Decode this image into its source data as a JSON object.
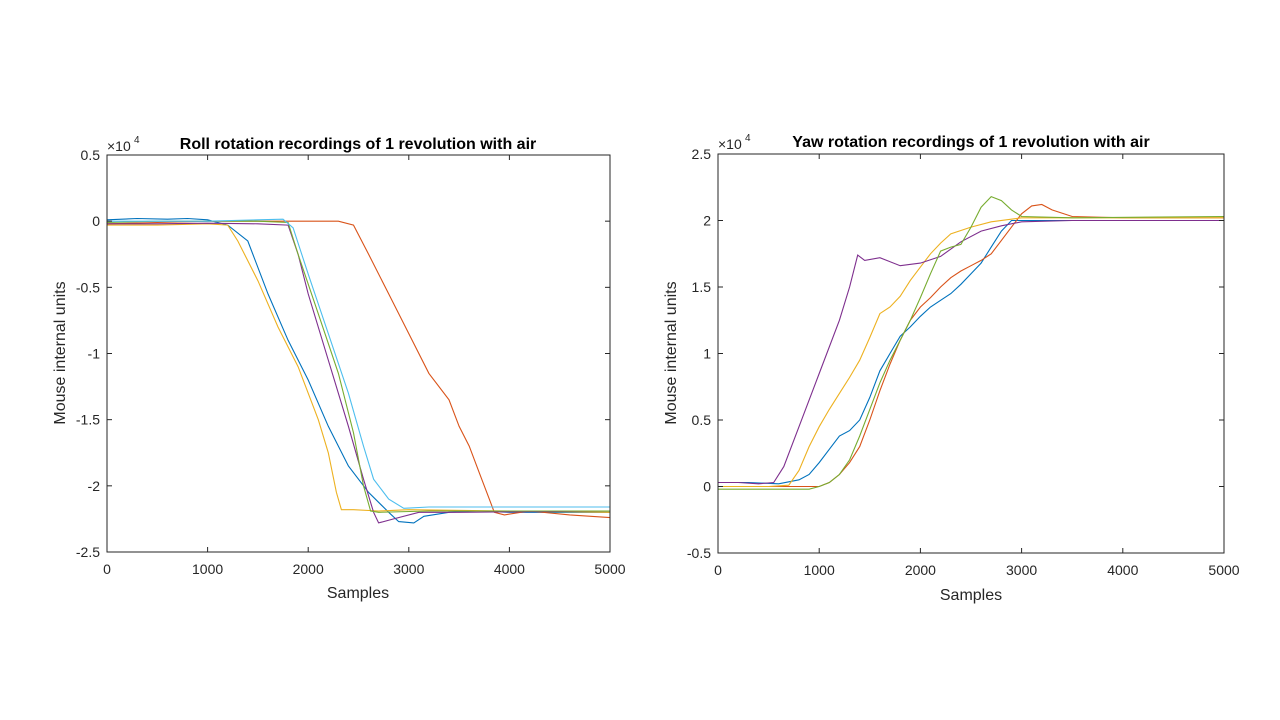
{
  "chart_data": [
    {
      "type": "line",
      "title": "Roll rotation recordings of 1 revolution with air",
      "xlabel": "Samples",
      "ylabel": "Mouse internal units",
      "xlim": [
        0,
        5000
      ],
      "ylim": [
        -25000,
        5000
      ],
      "x_ticks": [
        "0",
        "1000",
        "2000",
        "3000",
        "4000",
        "5000"
      ],
      "y_ticks": [
        "0.5",
        "0",
        "-0.5",
        "-1",
        "-1.5",
        "-2",
        "-2.5"
      ],
      "y_tick_values": [
        5000,
        0,
        -5000,
        -10000,
        -15000,
        -20000,
        -25000
      ],
      "exponent_label": "×10",
      "exponent_power": "4",
      "grid": false,
      "series": [
        {
          "color": "#0072BD",
          "points": [
            [
              0,
              100
            ],
            [
              300,
              200
            ],
            [
              600,
              150
            ],
            [
              800,
              200
            ],
            [
              1000,
              100
            ],
            [
              1200,
              -300
            ],
            [
              1400,
              -1500
            ],
            [
              1600,
              -5500
            ],
            [
              1800,
              -9000
            ],
            [
              2000,
              -12000
            ],
            [
              2200,
              -15500
            ],
            [
              2400,
              -18500
            ],
            [
              2600,
              -20500
            ],
            [
              2800,
              -22000
            ],
            [
              2900,
              -22700
            ],
            [
              3050,
              -22800
            ],
            [
              3150,
              -22300
            ],
            [
              3400,
              -22000
            ],
            [
              3700,
              -21900
            ],
            [
              4000,
              -22000
            ],
            [
              4500,
              -22000
            ],
            [
              5000,
              -22000
            ]
          ]
        },
        {
          "color": "#D95319",
          "points": [
            [
              0,
              -200
            ],
            [
              500,
              -100
            ],
            [
              1000,
              0
            ],
            [
              1500,
              0
            ],
            [
              2000,
              0
            ],
            [
              2300,
              0
            ],
            [
              2450,
              -300
            ],
            [
              2600,
              -2500
            ],
            [
              2800,
              -5500
            ],
            [
              3000,
              -8500
            ],
            [
              3200,
              -11500
            ],
            [
              3400,
              -13500
            ],
            [
              3500,
              -15500
            ],
            [
              3600,
              -17000
            ],
            [
              3700,
              -19000
            ],
            [
              3800,
              -21000
            ],
            [
              3850,
              -22000
            ],
            [
              3950,
              -22200
            ],
            [
              4200,
              -21900
            ],
            [
              4600,
              -22200
            ],
            [
              5000,
              -22400
            ]
          ]
        },
        {
          "color": "#EDB120",
          "points": [
            [
              0,
              -300
            ],
            [
              500,
              -300
            ],
            [
              1000,
              -200
            ],
            [
              1200,
              -300
            ],
            [
              1300,
              -1500
            ],
            [
              1500,
              -4500
            ],
            [
              1700,
              -8000
            ],
            [
              1900,
              -11000
            ],
            [
              2100,
              -15000
            ],
            [
              2200,
              -17500
            ],
            [
              2280,
              -20500
            ],
            [
              2330,
              -21800
            ],
            [
              2450,
              -21800
            ],
            [
              2700,
              -21900
            ],
            [
              3000,
              -21800
            ],
            [
              4000,
              -21900
            ],
            [
              5000,
              -22000
            ]
          ]
        },
        {
          "color": "#7E2F8E",
          "points": [
            [
              0,
              -200
            ],
            [
              500,
              -200
            ],
            [
              1000,
              -150
            ],
            [
              1500,
              -200
            ],
            [
              1800,
              -300
            ],
            [
              1900,
              -2500
            ],
            [
              2000,
              -5500
            ],
            [
              2200,
              -10500
            ],
            [
              2400,
              -15500
            ],
            [
              2550,
              -19500
            ],
            [
              2650,
              -22000
            ],
            [
              2700,
              -22800
            ],
            [
              2850,
              -22500
            ],
            [
              3100,
              -22000
            ],
            [
              3500,
              -22000
            ],
            [
              5000,
              -21900
            ]
          ]
        },
        {
          "color": "#77AC30",
          "points": [
            [
              0,
              -100
            ],
            [
              500,
              0
            ],
            [
              1000,
              0
            ],
            [
              1500,
              0
            ],
            [
              1800,
              -100
            ],
            [
              1900,
              -2500
            ],
            [
              2100,
              -7000
            ],
            [
              2300,
              -11500
            ],
            [
              2450,
              -16000
            ],
            [
              2550,
              -20000
            ],
            [
              2620,
              -21900
            ],
            [
              2700,
              -22000
            ],
            [
              3200,
              -21900
            ],
            [
              5000,
              -21900
            ]
          ]
        },
        {
          "color": "#4DBEEE",
          "points": [
            [
              0,
              0
            ],
            [
              500,
              0
            ],
            [
              1000,
              0
            ],
            [
              1500,
              100
            ],
            [
              1750,
              150
            ],
            [
              1850,
              -500
            ],
            [
              2000,
              -4000
            ],
            [
              2200,
              -8500
            ],
            [
              2400,
              -13000
            ],
            [
              2550,
              -17000
            ],
            [
              2650,
              -19500
            ],
            [
              2800,
              -21000
            ],
            [
              2950,
              -21700
            ],
            [
              3200,
              -21600
            ],
            [
              5000,
              -21600
            ]
          ]
        }
      ]
    },
    {
      "type": "line",
      "title": "Yaw rotation recordings of 1 revolution with air",
      "xlabel": "Samples",
      "ylabel": "Mouse internal units",
      "xlim": [
        0,
        5000
      ],
      "ylim": [
        -5000,
        25000
      ],
      "x_ticks": [
        "0",
        "1000",
        "2000",
        "3000",
        "4000",
        "5000"
      ],
      "y_ticks": [
        "2.5",
        "2",
        "1.5",
        "1",
        "0.5",
        "0",
        "-0.5"
      ],
      "y_tick_values": [
        25000,
        20000,
        15000,
        10000,
        5000,
        0,
        -5000
      ],
      "exponent_label": "×10",
      "exponent_power": "4",
      "grid": false,
      "series": [
        {
          "color": "#0072BD",
          "points": [
            [
              0,
              300
            ],
            [
              300,
              300
            ],
            [
              600,
              200
            ],
            [
              800,
              500
            ],
            [
              900,
              900
            ],
            [
              1000,
              1800
            ],
            [
              1100,
              2800
            ],
            [
              1200,
              3800
            ],
            [
              1300,
              4200
            ],
            [
              1400,
              5000
            ],
            [
              1500,
              6700
            ],
            [
              1600,
              8700
            ],
            [
              1700,
              10000
            ],
            [
              1800,
              11300
            ],
            [
              1900,
              12000
            ],
            [
              2000,
              12800
            ],
            [
              2100,
              13500
            ],
            [
              2200,
              14000
            ],
            [
              2300,
              14500
            ],
            [
              2400,
              15200
            ],
            [
              2500,
              16000
            ],
            [
              2600,
              16800
            ],
            [
              2700,
              18000
            ],
            [
              2800,
              19200
            ],
            [
              2900,
              20000
            ],
            [
              3000,
              20000
            ],
            [
              4000,
              20000
            ],
            [
              5000,
              20000
            ]
          ]
        },
        {
          "color": "#D95319",
          "points": [
            [
              0,
              0
            ],
            [
              500,
              0
            ],
            [
              1000,
              0
            ],
            [
              1100,
              300
            ],
            [
              1200,
              900
            ],
            [
              1300,
              1800
            ],
            [
              1400,
              3000
            ],
            [
              1500,
              5000
            ],
            [
              1600,
              7200
            ],
            [
              1700,
              9200
            ],
            [
              1800,
              11000
            ],
            [
              1900,
              12500
            ],
            [
              2000,
              13500
            ],
            [
              2100,
              14200
            ],
            [
              2200,
              15000
            ],
            [
              2300,
              15700
            ],
            [
              2400,
              16200
            ],
            [
              2500,
              16600
            ],
            [
              2600,
              17000
            ],
            [
              2700,
              17500
            ],
            [
              2800,
              18500
            ],
            [
              2900,
              19500
            ],
            [
              3000,
              20500
            ],
            [
              3100,
              21100
            ],
            [
              3200,
              21200
            ],
            [
              3300,
              20800
            ],
            [
              3500,
              20300
            ],
            [
              4000,
              20200
            ],
            [
              5000,
              20200
            ]
          ]
        },
        {
          "color": "#EDB120",
          "points": [
            [
              0,
              0
            ],
            [
              500,
              0
            ],
            [
              700,
              100
            ],
            [
              800,
              1200
            ],
            [
              900,
              3000
            ],
            [
              1000,
              4500
            ],
            [
              1100,
              5800
            ],
            [
              1200,
              7000
            ],
            [
              1300,
              8200
            ],
            [
              1400,
              9500
            ],
            [
              1500,
              11200
            ],
            [
              1600,
              13000
            ],
            [
              1700,
              13500
            ],
            [
              1800,
              14300
            ],
            [
              1900,
              15500
            ],
            [
              2000,
              16500
            ],
            [
              2100,
              17500
            ],
            [
              2200,
              18300
            ],
            [
              2300,
              19000
            ],
            [
              2500,
              19500
            ],
            [
              2700,
              19900
            ],
            [
              3000,
              20200
            ],
            [
              4000,
              20200
            ],
            [
              5000,
              20200
            ]
          ]
        },
        {
          "color": "#7E2F8E",
          "points": [
            [
              0,
              300
            ],
            [
              200,
              300
            ],
            [
              400,
              200
            ],
            [
              550,
              300
            ],
            [
              650,
              1500
            ],
            [
              800,
              4500
            ],
            [
              1000,
              8500
            ],
            [
              1200,
              12500
            ],
            [
              1300,
              15000
            ],
            [
              1380,
              17400
            ],
            [
              1450,
              17000
            ],
            [
              1600,
              17200
            ],
            [
              1800,
              16600
            ],
            [
              2000,
              16800
            ],
            [
              2200,
              17300
            ],
            [
              2400,
              18400
            ],
            [
              2600,
              19200
            ],
            [
              2800,
              19600
            ],
            [
              3000,
              19900
            ],
            [
              3500,
              20000
            ],
            [
              5000,
              20000
            ]
          ]
        },
        {
          "color": "#77AC30",
          "points": [
            [
              0,
              -200
            ],
            [
              500,
              -200
            ],
            [
              900,
              -200
            ],
            [
              1000,
              0
            ],
            [
              1100,
              300
            ],
            [
              1200,
              900
            ],
            [
              1300,
              2000
            ],
            [
              1400,
              3800
            ],
            [
              1500,
              5800
            ],
            [
              1600,
              7800
            ],
            [
              1700,
              9500
            ],
            [
              1800,
              11000
            ],
            [
              1900,
              12500
            ],
            [
              2000,
              14200
            ],
            [
              2100,
              16000
            ],
            [
              2200,
              17700
            ],
            [
              2300,
              18000
            ],
            [
              2400,
              18200
            ],
            [
              2500,
              19500
            ],
            [
              2600,
              21000
            ],
            [
              2700,
              21800
            ],
            [
              2800,
              21500
            ],
            [
              2900,
              20800
            ],
            [
              3000,
              20300
            ],
            [
              3500,
              20200
            ],
            [
              5000,
              20300
            ]
          ]
        }
      ]
    }
  ]
}
